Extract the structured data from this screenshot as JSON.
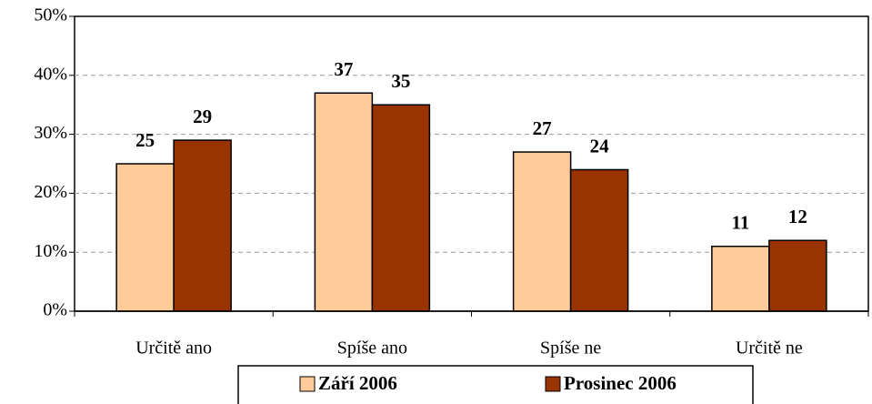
{
  "chart_data": {
    "type": "bar",
    "categories": [
      "Určitě ano",
      "Spíše ano",
      "Spíše ne",
      "Určitě ne"
    ],
    "series": [
      {
        "name": "Září 2006",
        "color": "#FFCC99",
        "values": [
          25,
          37,
          27,
          11
        ]
      },
      {
        "name": "Prosinec 2006",
        "color": "#993300",
        "values": [
          29,
          35,
          24,
          12
        ]
      }
    ],
    "ylim": [
      0,
      50
    ],
    "yticks": [
      {
        "value": 0,
        "label": "0%"
      },
      {
        "value": 10,
        "label": "10%"
      },
      {
        "value": 20,
        "label": "20%"
      },
      {
        "value": 30,
        "label": "30%"
      },
      {
        "value": 40,
        "label": "40%"
      },
      {
        "value": 50,
        "label": "50%"
      }
    ],
    "grid": true,
    "legend": "bottom"
  }
}
